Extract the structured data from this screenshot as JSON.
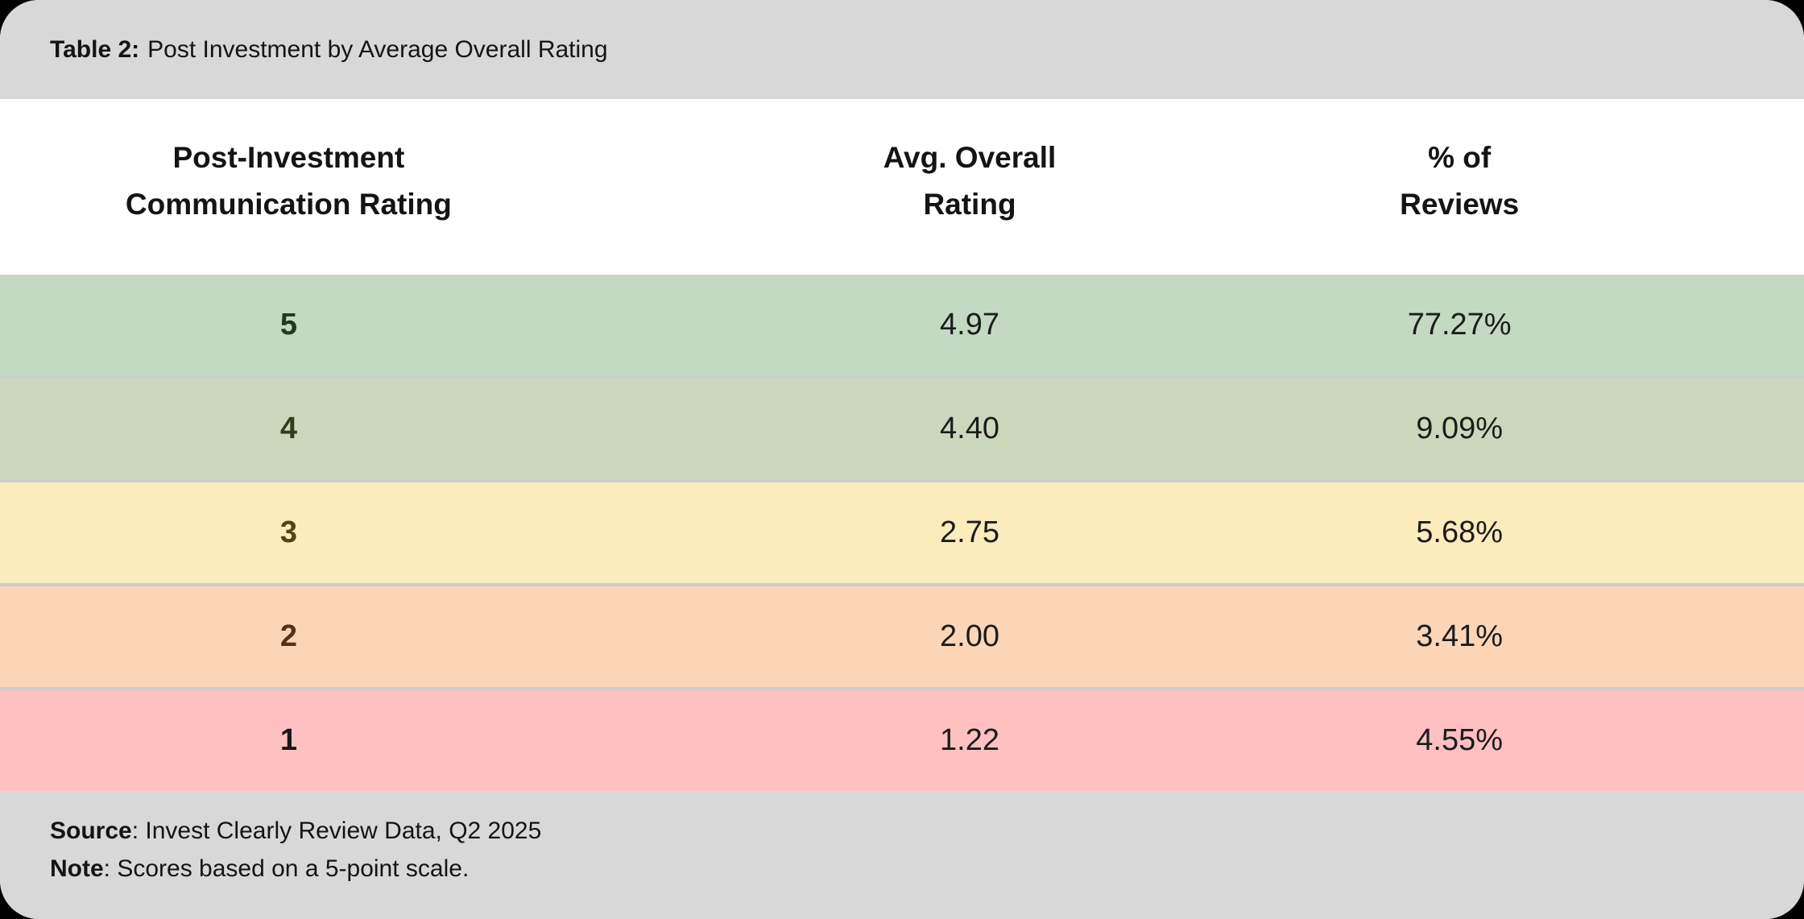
{
  "page": {
    "background": "#000000",
    "bar_gray": "#d8d8d8",
    "separator_gray": "#cdcdcd"
  },
  "title": {
    "prefix": "Table 2:",
    "text": "Post Investment by Average Overall Rating"
  },
  "table": {
    "headers": [
      {
        "line1": "Post-Investment",
        "line2": "Communication Rating"
      },
      {
        "line1": "Avg. Overall",
        "line2": "Rating"
      },
      {
        "line1": "% of",
        "line2": "Reviews"
      }
    ],
    "rows": [
      {
        "rating": "5",
        "avg_overall_rating": "4.97",
        "pct_of_reviews": "77.27%",
        "colors": {
          "bg": "#c3d9c2",
          "rating": "#1d3a1d"
        }
      },
      {
        "rating": "4",
        "avg_overall_rating": "4.40",
        "pct_of_reviews": "9.09%",
        "colors": {
          "bg": "#ccd8bc",
          "rating": "#303d18"
        }
      },
      {
        "rating": "3",
        "avg_overall_rating": "2.75",
        "pct_of_reviews": "5.68%",
        "colors": {
          "bg": "#fcebbd",
          "rating": "#524417"
        }
      },
      {
        "rating": "2",
        "avg_overall_rating": "2.00",
        "pct_of_reviews": "3.41%",
        "colors": {
          "bg": "#fcd5b7",
          "rating": "#57301a"
        }
      },
      {
        "rating": "1",
        "avg_overall_rating": "1.22",
        "pct_of_reviews": "4.55%",
        "colors": {
          "bg": "#fec0c0",
          "rating": "#171717"
        }
      }
    ]
  },
  "footer": {
    "source_label": "Source",
    "source_rest": ": Invest Clearly Review Data, Q2 2025",
    "note_label": "Note",
    "note_rest": ": Scores based on a 5-point scale."
  },
  "chart_data": {
    "type": "table",
    "title": "Table 2: Post Investment by Average Overall Rating",
    "columns": [
      "Post-Investment Communication Rating",
      "Avg. Overall Rating",
      "% of Reviews"
    ],
    "rows": [
      [
        5,
        4.97,
        "77.27%"
      ],
      [
        4,
        4.4,
        "9.09%"
      ],
      [
        3,
        2.75,
        "5.68%"
      ],
      [
        2,
        2.0,
        "3.41%"
      ],
      [
        1,
        1.22,
        "4.55%"
      ]
    ],
    "row_color_scale": [
      "#c3d9c2",
      "#ccd8bc",
      "#fcebbd",
      "#fcd5b7",
      "#fec0c0"
    ],
    "source": "Invest Clearly Review Data, Q2 2025",
    "note": "Scores based on a 5-point scale."
  }
}
